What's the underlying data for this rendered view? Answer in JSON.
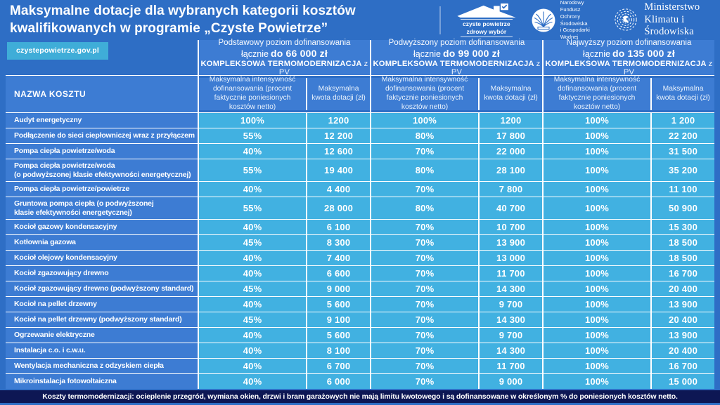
{
  "header": {
    "title": "Maksymalne dotacje dla wybranych kategorii kosztów kwalifikowanych w programie „Czyste Powietrze”",
    "logos": {
      "czyste_powietrze": {
        "text": "czyste powietrze\nzdrowy wybór"
      },
      "nfosigw": {
        "text": "Narodowy Fundusz\nOchrony Środowiska\ni Gospodarki Wodnej"
      },
      "ministry": {
        "text": "Ministerstwo\nKlimatu i Środowiska"
      }
    }
  },
  "badge": "czystepowietrze.gov.pl",
  "footer": {
    "note": "Koszty termomodernizacji: ocieplenie przegród, wymiana okien, drzwi i bram garażowych nie mają limitu kwotowego i są dofinansowane w określonym % do poniesionych kosztów netto."
  },
  "chart_data": {
    "type": "table",
    "title": "Maksymalne dotacje dla wybranych kategorii kosztów kwalifikowanych w programie „Czyste Powietrze”",
    "name_header": "NAZWA KOSZTU",
    "groups": [
      {
        "level": "Podstawowy poziom dofinansowania",
        "prefix": "łącznie",
        "limit": "do 66 000 zł",
        "program": "KOMPLEKSOWA TERMOMODERNIZACJA",
        "program_suffix": "z PV"
      },
      {
        "level": "Podwyższony poziom dofinansowania",
        "prefix": "łącznie",
        "limit": "do 99 000 zł",
        "program": "KOMPLEKSOWA TERMOMODERNIZACJA",
        "program_suffix": "z PV"
      },
      {
        "level": "Najwyższy poziom dofinansowania",
        "prefix": "łącznie",
        "limit": "do 135 000 zł",
        "program": "KOMPLEKSOWA TERMOMODERNIZACJA",
        "program_suffix": "z PV"
      }
    ],
    "subheaders": {
      "intensity": "Maksymalna intensywność dofinansowania (procent faktycznie poniesionych kosztów netto)",
      "amount": "Maksymalna kwota dotacji (zł)"
    },
    "rows": [
      {
        "name": "Audyt energetyczny",
        "v": [
          [
            "100%",
            "1200"
          ],
          [
            "100%",
            "1200"
          ],
          [
            "100%",
            "1 200"
          ]
        ]
      },
      {
        "name": "Podłączenie do sieci ciepłowniczej wraz z przyłączem",
        "v": [
          [
            "55%",
            "12 200"
          ],
          [
            "80%",
            "17 800"
          ],
          [
            "100%",
            "22 200"
          ]
        ]
      },
      {
        "name": "Pompa ciepła powietrze/woda",
        "v": [
          [
            "40%",
            "12 600"
          ],
          [
            "70%",
            "22 000"
          ],
          [
            "100%",
            "31 500"
          ]
        ]
      },
      {
        "name": "Pompa ciepła powietrze/woda",
        "name2": "(o podwyższonej klasie efektywności energetycznej)",
        "tall": true,
        "v": [
          [
            "55%",
            "19 400"
          ],
          [
            "80%",
            "28 100"
          ],
          [
            "100%",
            "35 200"
          ]
        ]
      },
      {
        "name": "Pompa ciepła powietrze/powietrze",
        "v": [
          [
            "40%",
            "4 400"
          ],
          [
            "70%",
            "7 800"
          ],
          [
            "100%",
            "11 100"
          ]
        ]
      },
      {
        "name": "Gruntowa pompa ciepła (o podwyższonej",
        "name2": "klasie efektywności energetycznej)",
        "tall": true,
        "v": [
          [
            "55%",
            "28 000"
          ],
          [
            "80%",
            "40 700"
          ],
          [
            "100%",
            "50 900"
          ]
        ]
      },
      {
        "name": "Kocioł gazowy kondensacyjny",
        "v": [
          [
            "40%",
            "6 100"
          ],
          [
            "70%",
            "10 700"
          ],
          [
            "100%",
            "15 300"
          ]
        ]
      },
      {
        "name": "Kotłownia gazowa",
        "v": [
          [
            "45%",
            "8 300"
          ],
          [
            "70%",
            "13 900"
          ],
          [
            "100%",
            "18 500"
          ]
        ]
      },
      {
        "name": "Kocioł olejowy kondensacyjny",
        "v": [
          [
            "40%",
            "7 400"
          ],
          [
            "70%",
            "13 000"
          ],
          [
            "100%",
            "18 500"
          ]
        ]
      },
      {
        "name": "Kocioł zgazowujący drewno",
        "v": [
          [
            "40%",
            "6 600"
          ],
          [
            "70%",
            "11 700"
          ],
          [
            "100%",
            "16 700"
          ]
        ]
      },
      {
        "name": "Kocioł zgazowujący drewno (podwyższony standard)",
        "v": [
          [
            "45%",
            "9 000"
          ],
          [
            "70%",
            "14 300"
          ],
          [
            "100%",
            "20 400"
          ]
        ]
      },
      {
        "name": "Kocioł na pellet drzewny",
        "v": [
          [
            "40%",
            "5 600"
          ],
          [
            "70%",
            "9 700"
          ],
          [
            "100%",
            "13 900"
          ]
        ]
      },
      {
        "name": "Kocioł na pellet drzewny (podwyższony standard)",
        "v": [
          [
            "45%",
            "9 100"
          ],
          [
            "70%",
            "14 300"
          ],
          [
            "100%",
            "20 400"
          ]
        ]
      },
      {
        "name": "Ogrzewanie elektryczne",
        "v": [
          [
            "40%",
            "5 600"
          ],
          [
            "70%",
            "9 700"
          ],
          [
            "100%",
            "13 900"
          ]
        ]
      },
      {
        "name": "Instalacja c.o. i c.w.u.",
        "v": [
          [
            "40%",
            "8 100"
          ],
          [
            "70%",
            "14 300"
          ],
          [
            "100%",
            "20 400"
          ]
        ]
      },
      {
        "name": "Wentylacja mechaniczna z odzyskiem ciepła",
        "v": [
          [
            "40%",
            "6 700"
          ],
          [
            "70%",
            "11 700"
          ],
          [
            "100%",
            "16 700"
          ]
        ]
      },
      {
        "name": "Mikroinstalacja fotowoltaiczna",
        "v": [
          [
            "40%",
            "6 000"
          ],
          [
            "70%",
            "9 000"
          ],
          [
            "100%",
            "15 000"
          ]
        ]
      }
    ],
    "colors": {
      "background": "#2e6ec5",
      "label_cell": "#3d7cd3",
      "value_cell": "#41b1e1",
      "badge": "#3fadd8",
      "footer_bar": "#0d1754"
    }
  }
}
